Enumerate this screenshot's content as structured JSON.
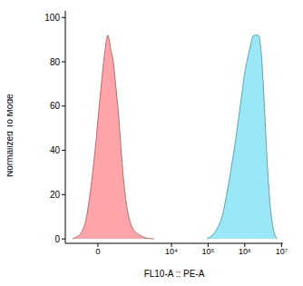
{
  "chart_data": {
    "type": "area",
    "x_label": "FL10-A :: PE-A",
    "y_label": "Normalized To Mode",
    "log": "x",
    "xlim": [
      -670,
      11000000
    ],
    "xticks": [
      0,
      {
        "value": 10000,
        "label": "10⁴"
      },
      {
        "value": 100000,
        "label": "10⁵"
      },
      {
        "value": 1000000,
        "label": "10⁶"
      },
      {
        "value": 10000000,
        "label": "10⁷"
      }
    ],
    "ylim": [
      -2,
      103
    ],
    "yticks": [
      0,
      20,
      40,
      60,
      80,
      100
    ],
    "grid": false,
    "series": [
      {
        "color": "#ff9a9e",
        "x": [
          -391,
          -270,
          -178,
          -109,
          -58,
          -19,
          12,
          49,
          87,
          122,
          163,
          212,
          270,
          339,
          420,
          553,
          720,
          989,
          1350,
          1820,
          3290
        ],
        "values": [
          0,
          1,
          3,
          9,
          22,
          40,
          62,
          82,
          92,
          86,
          80,
          68,
          55,
          38,
          24,
          12,
          6,
          3,
          1.5,
          0.5,
          0
        ]
      },
      {
        "color": "#8fe4f6",
        "x": [
          91700,
          136700,
          181500,
          241000,
          320600,
          426500,
          566000,
          753000,
          1000000,
          1328000,
          1766000,
          2345000,
          2780000,
          3304000,
          3917000,
          4645000,
          5508000,
          6531000,
          7745000
        ],
        "values": [
          0,
          2,
          5,
          10,
          20,
          32,
          45,
          60,
          75,
          85,
          92,
          92,
          85,
          65,
          40,
          20,
          8,
          2,
          0
        ]
      }
    ]
  }
}
